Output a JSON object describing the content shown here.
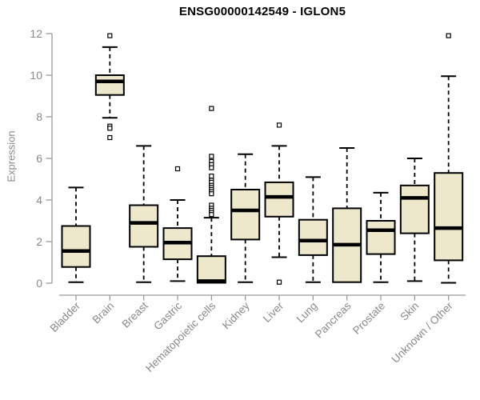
{
  "chart_data": {
    "type": "boxplot",
    "title": "ENSG00000142549 - IGLON5",
    "ylabel": "Expression",
    "xlabel": "",
    "ylim": [
      0,
      12
    ],
    "yticks": [
      0,
      2,
      4,
      6,
      8,
      10,
      12
    ],
    "grid": false,
    "legend": null,
    "categories": [
      "Bladder",
      "Brain",
      "Breast",
      "Gastric",
      "Hematopoietic cells",
      "Kidney",
      "Liver",
      "Lung",
      "Pancreas",
      "Prostate",
      "Skin",
      "Unknown / Other"
    ],
    "series": [
      {
        "name": "Bladder",
        "whisker_low": 0.05,
        "q1": 0.78,
        "median": 1.55,
        "q3": 2.75,
        "whisker_high": 4.6,
        "outliers": []
      },
      {
        "name": "Brain",
        "whisker_low": 7.95,
        "q1": 9.05,
        "median": 9.7,
        "q3": 10.0,
        "whisker_high": 11.35,
        "outliers": [
          11.9,
          7.55,
          7.45,
          7.0
        ]
      },
      {
        "name": "Breast",
        "whisker_low": 0.05,
        "q1": 1.75,
        "median": 2.9,
        "q3": 3.75,
        "whisker_high": 6.6,
        "outliers": []
      },
      {
        "name": "Gastric",
        "whisker_low": 0.1,
        "q1": 1.15,
        "median": 1.95,
        "q3": 2.65,
        "whisker_high": 4.0,
        "outliers": [
          5.5
        ]
      },
      {
        "name": "Hematopoietic cells",
        "whisker_low": 0.0,
        "q1": 0.02,
        "median": 0.1,
        "q3": 1.3,
        "whisker_high": 3.15,
        "outliers": [
          8.4,
          6.1,
          5.85,
          5.7,
          5.55,
          5.15,
          4.95,
          4.85,
          4.7,
          4.6,
          4.5,
          4.4,
          4.3,
          3.75,
          3.6,
          3.5,
          3.4,
          3.3
        ]
      },
      {
        "name": "Kidney",
        "whisker_low": 0.05,
        "q1": 2.1,
        "median": 3.5,
        "q3": 4.5,
        "whisker_high": 6.2,
        "outliers": []
      },
      {
        "name": "Liver",
        "whisker_low": 1.25,
        "q1": 3.2,
        "median": 4.15,
        "q3": 4.85,
        "whisker_high": 6.6,
        "outliers": [
          7.6,
          0.05
        ]
      },
      {
        "name": "Lung",
        "whisker_low": 0.05,
        "q1": 1.35,
        "median": 2.05,
        "q3": 3.05,
        "whisker_high": 5.1,
        "outliers": []
      },
      {
        "name": "Pancreas",
        "whisker_low": 0.0,
        "q1": 0.05,
        "median": 1.85,
        "q3": 3.6,
        "whisker_high": 6.5,
        "outliers": []
      },
      {
        "name": "Prostate",
        "whisker_low": 0.05,
        "q1": 1.4,
        "median": 2.55,
        "q3": 3.0,
        "whisker_high": 4.35,
        "outliers": []
      },
      {
        "name": "Skin",
        "whisker_low": 0.1,
        "q1": 2.4,
        "median": 4.1,
        "q3": 4.7,
        "whisker_high": 6.0,
        "outliers": []
      },
      {
        "name": "Unknown / Other",
        "whisker_low": 0.02,
        "q1": 1.1,
        "median": 2.65,
        "q3": 5.3,
        "whisker_high": 9.95,
        "outliers": [
          11.9
        ]
      }
    ],
    "colors": {
      "box_fill": "#EDE7CB",
      "box_stroke": "#000000",
      "median": "#000000",
      "whisker": "#000000",
      "axis": "#9B9B9B",
      "tick_label": "#8A8A8A",
      "title": "#000000",
      "background": "#FFFFFF"
    }
  }
}
